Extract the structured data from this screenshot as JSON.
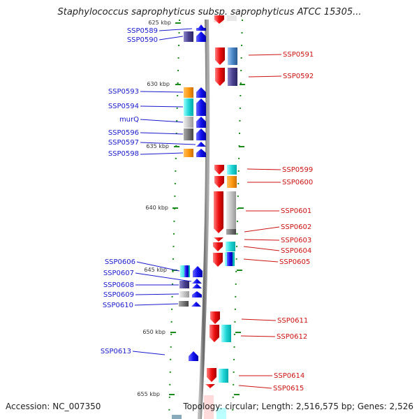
{
  "title": "Staphylococcus saprophyticus subsp. saprophyticus ATCC 15305...",
  "footer": {
    "accession": "Accession: NC_007350",
    "topology": "Topology: circular; Length: 2,516,575 bp; Genes: 2,526"
  },
  "colors": {
    "forward_label": "#1a1acc",
    "reverse_label": "#cc1111",
    "tick": "#1a8a1a",
    "backbone": "#888888"
  },
  "kbp_ticks": [
    "625 kbp",
    "630 kbp",
    "635 kbp",
    "640 kbp",
    "645 kbp",
    "650 kbp",
    "655 kbp"
  ],
  "forward_genes": [
    {
      "name": "SSP0589",
      "cog": "blue"
    },
    {
      "name": "SSP0590",
      "cog": "slate"
    },
    {
      "name": "SSP0593",
      "cog": "orange"
    },
    {
      "name": "SSP0594",
      "cog": "cyan"
    },
    {
      "name": "murQ",
      "cog": "lightgray"
    },
    {
      "name": "SSP0596",
      "cog": "gray"
    },
    {
      "name": "SSP0597",
      "cog": "blue"
    },
    {
      "name": "SSP0598",
      "cog": "orange"
    },
    {
      "name": "SSP0606",
      "cog": "cyan"
    },
    {
      "name": "SSP0607",
      "cog": "blue"
    },
    {
      "name": "SSP0608",
      "cog": "slate"
    },
    {
      "name": "SSP0609",
      "cog": "lightgray"
    },
    {
      "name": "SSP0610",
      "cog": "gray"
    },
    {
      "name": "SSP0613",
      "cog": "blue"
    }
  ],
  "reverse_genes": [
    {
      "name": "SSP0591",
      "cog": "steelblue"
    },
    {
      "name": "SSP0592",
      "cog": "slate"
    },
    {
      "name": "SSP0599",
      "cog": "cyan"
    },
    {
      "name": "SSP0600",
      "cog": "orange"
    },
    {
      "name": "SSP0601",
      "cog": "lightgray"
    },
    {
      "name": "SSP0602",
      "cog": "gray"
    },
    {
      "name": "SSP0603",
      "cog": "red"
    },
    {
      "name": "SSP0604",
      "cog": "cyan"
    },
    {
      "name": "SSP0605",
      "cog": "blue"
    },
    {
      "name": "SSP0611",
      "cog": "red"
    },
    {
      "name": "SSP0612",
      "cog": "cyan"
    },
    {
      "name": "SSP0614",
      "cog": "cyan"
    },
    {
      "name": "SSP0615",
      "cog": "red"
    }
  ]
}
